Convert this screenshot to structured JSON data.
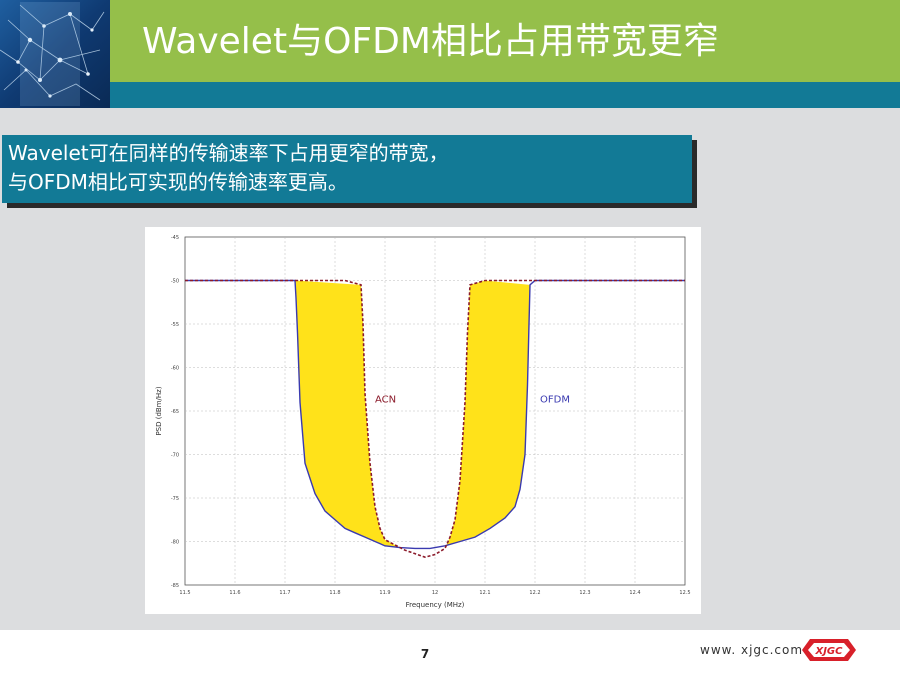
{
  "slide": {
    "title": "Wavelet与OFDM相比占用带宽更窄",
    "bullet_lines": [
      "Wavelet可在同样的传输速率下占用更窄的带宽，",
      "与OFDM相比可实现的传输速率更高。"
    ],
    "page_number": "7",
    "footer_url": "www. xjgc.com",
    "logo_text": "XJGC"
  },
  "colors": {
    "header_green": "#95bf4a",
    "header_teal": "#127a96",
    "panel_gray": "#dcdddf",
    "acn_line": "#8b1a2a",
    "ofdm_line": "#3a3ab0",
    "fill_yellow": "#ffe21a",
    "logo_red": "#d8202a"
  },
  "chart_data": {
    "type": "line",
    "xlabel": "Frequency (MHz)",
    "ylabel": "PSD (dBm/Hz)",
    "xlim": [
      11.5,
      12.5
    ],
    "ylim": [
      -85,
      -45
    ],
    "x_ticks": [
      "11.5",
      "11.6",
      "11.7",
      "11.8",
      "11.9",
      "12",
      "12.1",
      "12.2",
      "12.3",
      "12.4",
      "12.5"
    ],
    "y_ticks": [
      "-45",
      "-50",
      "-55",
      "-60",
      "-65",
      "-70",
      "-75",
      "-80",
      "-85"
    ],
    "grid": true,
    "annotations": [
      "ACN",
      "OFDM"
    ],
    "series": [
      {
        "name": "ACN",
        "x": [
          11.5,
          11.6,
          11.7,
          11.74,
          11.82,
          11.852,
          11.856,
          11.86,
          11.87,
          11.88,
          11.89,
          11.9,
          11.92,
          11.94,
          11.96,
          11.98,
          12.0,
          12.02,
          12.03,
          12.04,
          12.05,
          12.06,
          12.065,
          12.07,
          12.1,
          12.2,
          12.3,
          12.4,
          12.5
        ],
        "y": [
          -50,
          -50,
          -50,
          -50,
          -50,
          -50.5,
          -55,
          -63,
          -71,
          -76,
          -78.5,
          -79.8,
          -80.4,
          -81,
          -81.4,
          -81.8,
          -81.5,
          -80.8,
          -79.5,
          -77.5,
          -73,
          -64,
          -56,
          -50.5,
          -50,
          -50,
          -50,
          -50,
          -50
        ]
      },
      {
        "name": "OFDM",
        "x": [
          11.5,
          11.6,
          11.7,
          11.72,
          11.722,
          11.725,
          11.73,
          11.74,
          11.76,
          11.78,
          11.8,
          11.82,
          11.84,
          11.86,
          11.88,
          11.9,
          11.93,
          11.96,
          11.99,
          12.02,
          12.05,
          12.08,
          12.11,
          12.14,
          12.16,
          12.17,
          12.18,
          12.185,
          12.188,
          12.19,
          12.2,
          12.3,
          12.4,
          12.5
        ],
        "y": [
          -50,
          -50,
          -50,
          -50,
          -52,
          -56,
          -64,
          -71,
          -74.5,
          -76.5,
          -77.5,
          -78.5,
          -79,
          -79.5,
          -80,
          -80.5,
          -80.7,
          -80.8,
          -80.8,
          -80.5,
          -80,
          -79.5,
          -78.5,
          -77.3,
          -76,
          -74,
          -70,
          -62,
          -55,
          -50.5,
          -50,
          -50,
          -50,
          -50
        ]
      }
    ]
  }
}
